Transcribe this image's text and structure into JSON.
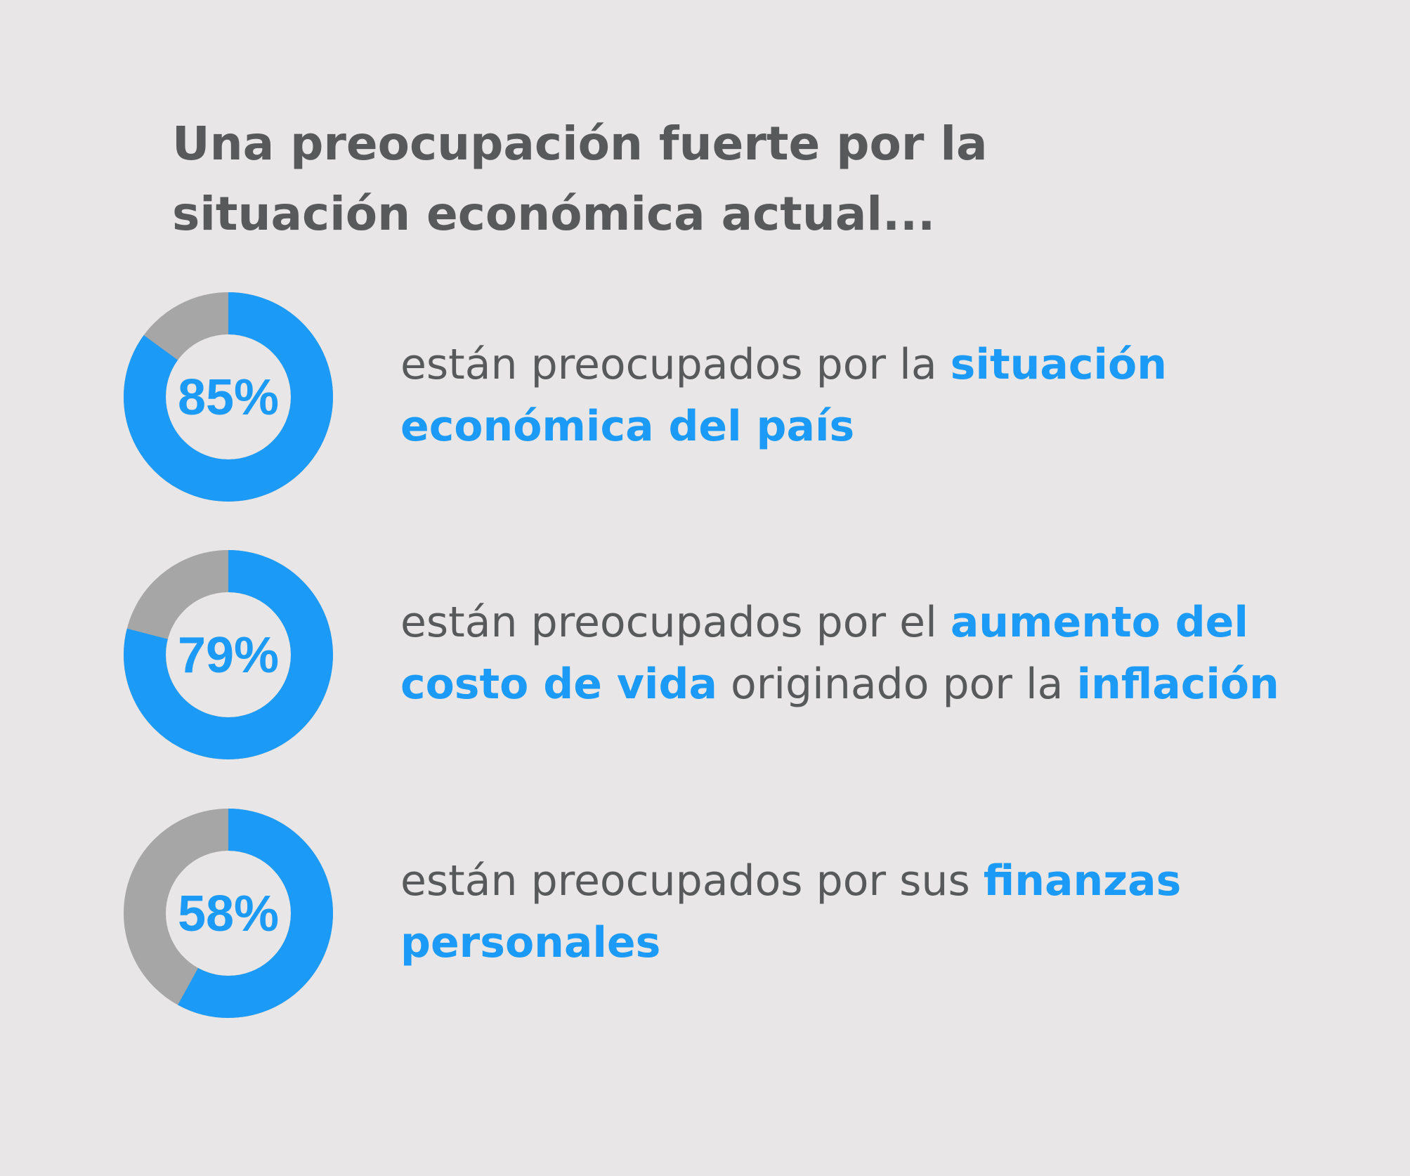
{
  "title": "Una preocupación fuerte por la situación económica actual...",
  "colors": {
    "accent": "#1b9bf7",
    "remainder": "#a6a6a6",
    "text": "#58595b",
    "background": "#e8e6e6"
  },
  "items": [
    {
      "percent_label": "85%",
      "segments": [
        {
          "text": "están preocupados por la ",
          "highlight": false
        },
        {
          "text": "situación económica del país",
          "highlight": true
        }
      ]
    },
    {
      "percent_label": "79%",
      "segments": [
        {
          "text": "están preocupados por el ",
          "highlight": false
        },
        {
          "text": "aumento del costo de vida",
          "highlight": true
        },
        {
          "text": " originado por la ",
          "highlight": false
        },
        {
          "text": "inflación",
          "highlight": true
        }
      ]
    },
    {
      "percent_label": "58%",
      "segments": [
        {
          "text": "están preocupados por sus ",
          "highlight": false
        },
        {
          "text": "finanzas personales",
          "highlight": true
        }
      ]
    }
  ],
  "chart_data": {
    "type": "pie",
    "title": "Una preocupación fuerte por la situación económica actual...",
    "categories": [
      "están preocupados por la situación económica del país",
      "están preocupados por el aumento del costo de vida originado por la inflación",
      "están preocupados por sus finanzas personales"
    ],
    "values": [
      85,
      79,
      58
    ],
    "unit": "%"
  }
}
